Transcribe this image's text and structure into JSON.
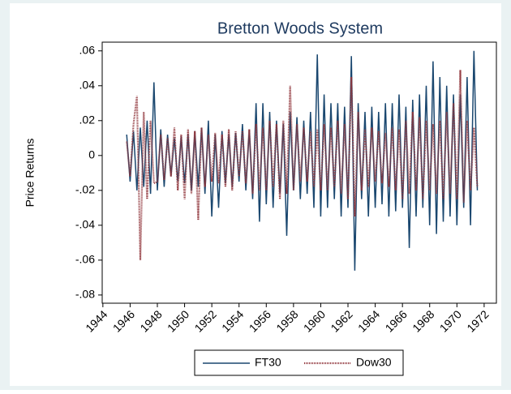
{
  "chart_data": {
    "type": "line",
    "title": "Bretton Woods System",
    "y_label": "Price Returns",
    "x": [
      1945.75,
      1946,
      1946.25,
      1946.5,
      1946.75,
      1947,
      1947.25,
      1947.5,
      1947.75,
      1948,
      1948.25,
      1948.5,
      1948.75,
      1949,
      1949.25,
      1949.5,
      1949.75,
      1950,
      1950.25,
      1950.5,
      1950.75,
      1951,
      1951.25,
      1951.5,
      1951.75,
      1952,
      1952.25,
      1952.5,
      1952.75,
      1953,
      1953.25,
      1953.5,
      1953.75,
      1954,
      1954.25,
      1954.5,
      1954.75,
      1955,
      1955.25,
      1955.5,
      1955.75,
      1956,
      1956.25,
      1956.5,
      1956.75,
      1957,
      1957.25,
      1957.5,
      1957.75,
      1958,
      1958.25,
      1958.5,
      1958.75,
      1959,
      1959.25,
      1959.5,
      1959.75,
      1960,
      1960.25,
      1960.5,
      1960.75,
      1961,
      1961.25,
      1961.5,
      1961.75,
      1962,
      1962.25,
      1962.5,
      1962.75,
      1963,
      1963.25,
      1963.5,
      1963.75,
      1964,
      1964.25,
      1964.5,
      1964.75,
      1965,
      1965.25,
      1965.5,
      1965.75,
      1966,
      1966.25,
      1966.5,
      1966.75,
      1967,
      1967.25,
      1967.5,
      1967.75,
      1968,
      1968.25,
      1968.5,
      1968.75,
      1969,
      1969.25,
      1969.5,
      1969.75,
      1970,
      1970.25,
      1970.5,
      1970.75,
      1971,
      1971.25,
      1971.5
    ],
    "series": [
      {
        "name": "FT30",
        "color": "#1a476f",
        "dash": false,
        "values": [
          0.012,
          -0.015,
          0.014,
          -0.02,
          0.016,
          -0.018,
          0.02,
          -0.022,
          0.042,
          -0.02,
          0.015,
          -0.018,
          0.012,
          -0.012,
          0.01,
          -0.015,
          0.011,
          -0.016,
          0.012,
          -0.02,
          0.014,
          -0.018,
          0.016,
          -0.022,
          0.02,
          -0.035,
          0.012,
          -0.03,
          0.014,
          -0.016,
          0.012,
          -0.018,
          0.013,
          -0.015,
          0.018,
          -0.02,
          0.015,
          -0.025,
          0.03,
          -0.038,
          0.03,
          -0.028,
          0.025,
          -0.03,
          0.02,
          -0.022,
          0.018,
          -0.046,
          0.025,
          -0.02,
          0.022,
          -0.025,
          0.02,
          -0.022,
          0.025,
          -0.03,
          0.058,
          -0.035,
          0.035,
          -0.03,
          0.03,
          -0.025,
          0.03,
          -0.035,
          0.028,
          -0.03,
          0.057,
          -0.066,
          0.03,
          -0.025,
          0.025,
          -0.035,
          0.028,
          -0.03,
          0.025,
          -0.028,
          0.03,
          -0.035,
          0.03,
          -0.032,
          0.035,
          -0.03,
          0.028,
          -0.053,
          0.032,
          -0.035,
          0.035,
          -0.03,
          0.04,
          -0.04,
          0.054,
          -0.045,
          0.045,
          -0.038,
          0.04,
          -0.035,
          0.035,
          -0.04,
          0.035,
          -0.03,
          0.045,
          -0.04,
          0.06,
          -0.02
        ]
      },
      {
        "name": "Dow30",
        "color": "#90353b",
        "dash": true,
        "values": [
          0.008,
          -0.012,
          0.018,
          0.034,
          -0.06,
          0.025,
          -0.025,
          0.02,
          -0.016,
          -0.015,
          0.012,
          -0.014,
          0.01,
          -0.012,
          0.016,
          -0.02,
          0.012,
          -0.025,
          0.015,
          -0.022,
          0.014,
          -0.037,
          0.016,
          -0.018,
          0.012,
          -0.015,
          0.013,
          -0.016,
          0.012,
          -0.018,
          0.015,
          -0.02,
          0.014,
          -0.012,
          0.014,
          -0.016,
          0.015,
          -0.022,
          0.018,
          -0.02,
          0.016,
          -0.02,
          0.02,
          -0.018,
          0.018,
          -0.025,
          0.02,
          -0.022,
          0.04,
          -0.02,
          0.018,
          -0.015,
          0.016,
          -0.015,
          0.014,
          -0.018,
          0.015,
          -0.02,
          0.018,
          -0.02,
          0.016,
          -0.018,
          0.02,
          -0.022,
          0.018,
          -0.025,
          0.045,
          -0.035,
          0.025,
          -0.02,
          0.015,
          -0.018,
          0.016,
          -0.015,
          0.014,
          -0.016,
          0.013,
          -0.018,
          0.016,
          -0.02,
          0.015,
          -0.025,
          0.02,
          -0.022,
          0.025,
          -0.02,
          0.022,
          -0.025,
          0.02,
          -0.02,
          0.018,
          -0.022,
          0.02,
          -0.025,
          0.025,
          -0.022,
          0.03,
          -0.025,
          0.049,
          -0.027,
          0.02,
          -0.02,
          0.016,
          -0.018
        ]
      }
    ],
    "xlim": [
      1943.95,
      1972.9
    ],
    "ylim": [
      -0.0847,
      0.065
    ],
    "xticks": [
      1944,
      1946,
      1948,
      1950,
      1952,
      1954,
      1956,
      1958,
      1960,
      1962,
      1964,
      1966,
      1968,
      1970,
      1972
    ],
    "yticks": [
      {
        "value": 0.06,
        "label": ".06"
      },
      {
        "value": 0.04,
        "label": ".04"
      },
      {
        "value": 0.02,
        "label": ".02"
      },
      0,
      {
        "value": -0.02,
        "label": "-.02"
      },
      {
        "value": -0.04,
        "label": "-.04"
      },
      {
        "value": -0.06,
        "label": "-.06"
      },
      {
        "value": -0.08,
        "label": "-.08"
      }
    ],
    "grid": false,
    "legend": "bottom"
  }
}
